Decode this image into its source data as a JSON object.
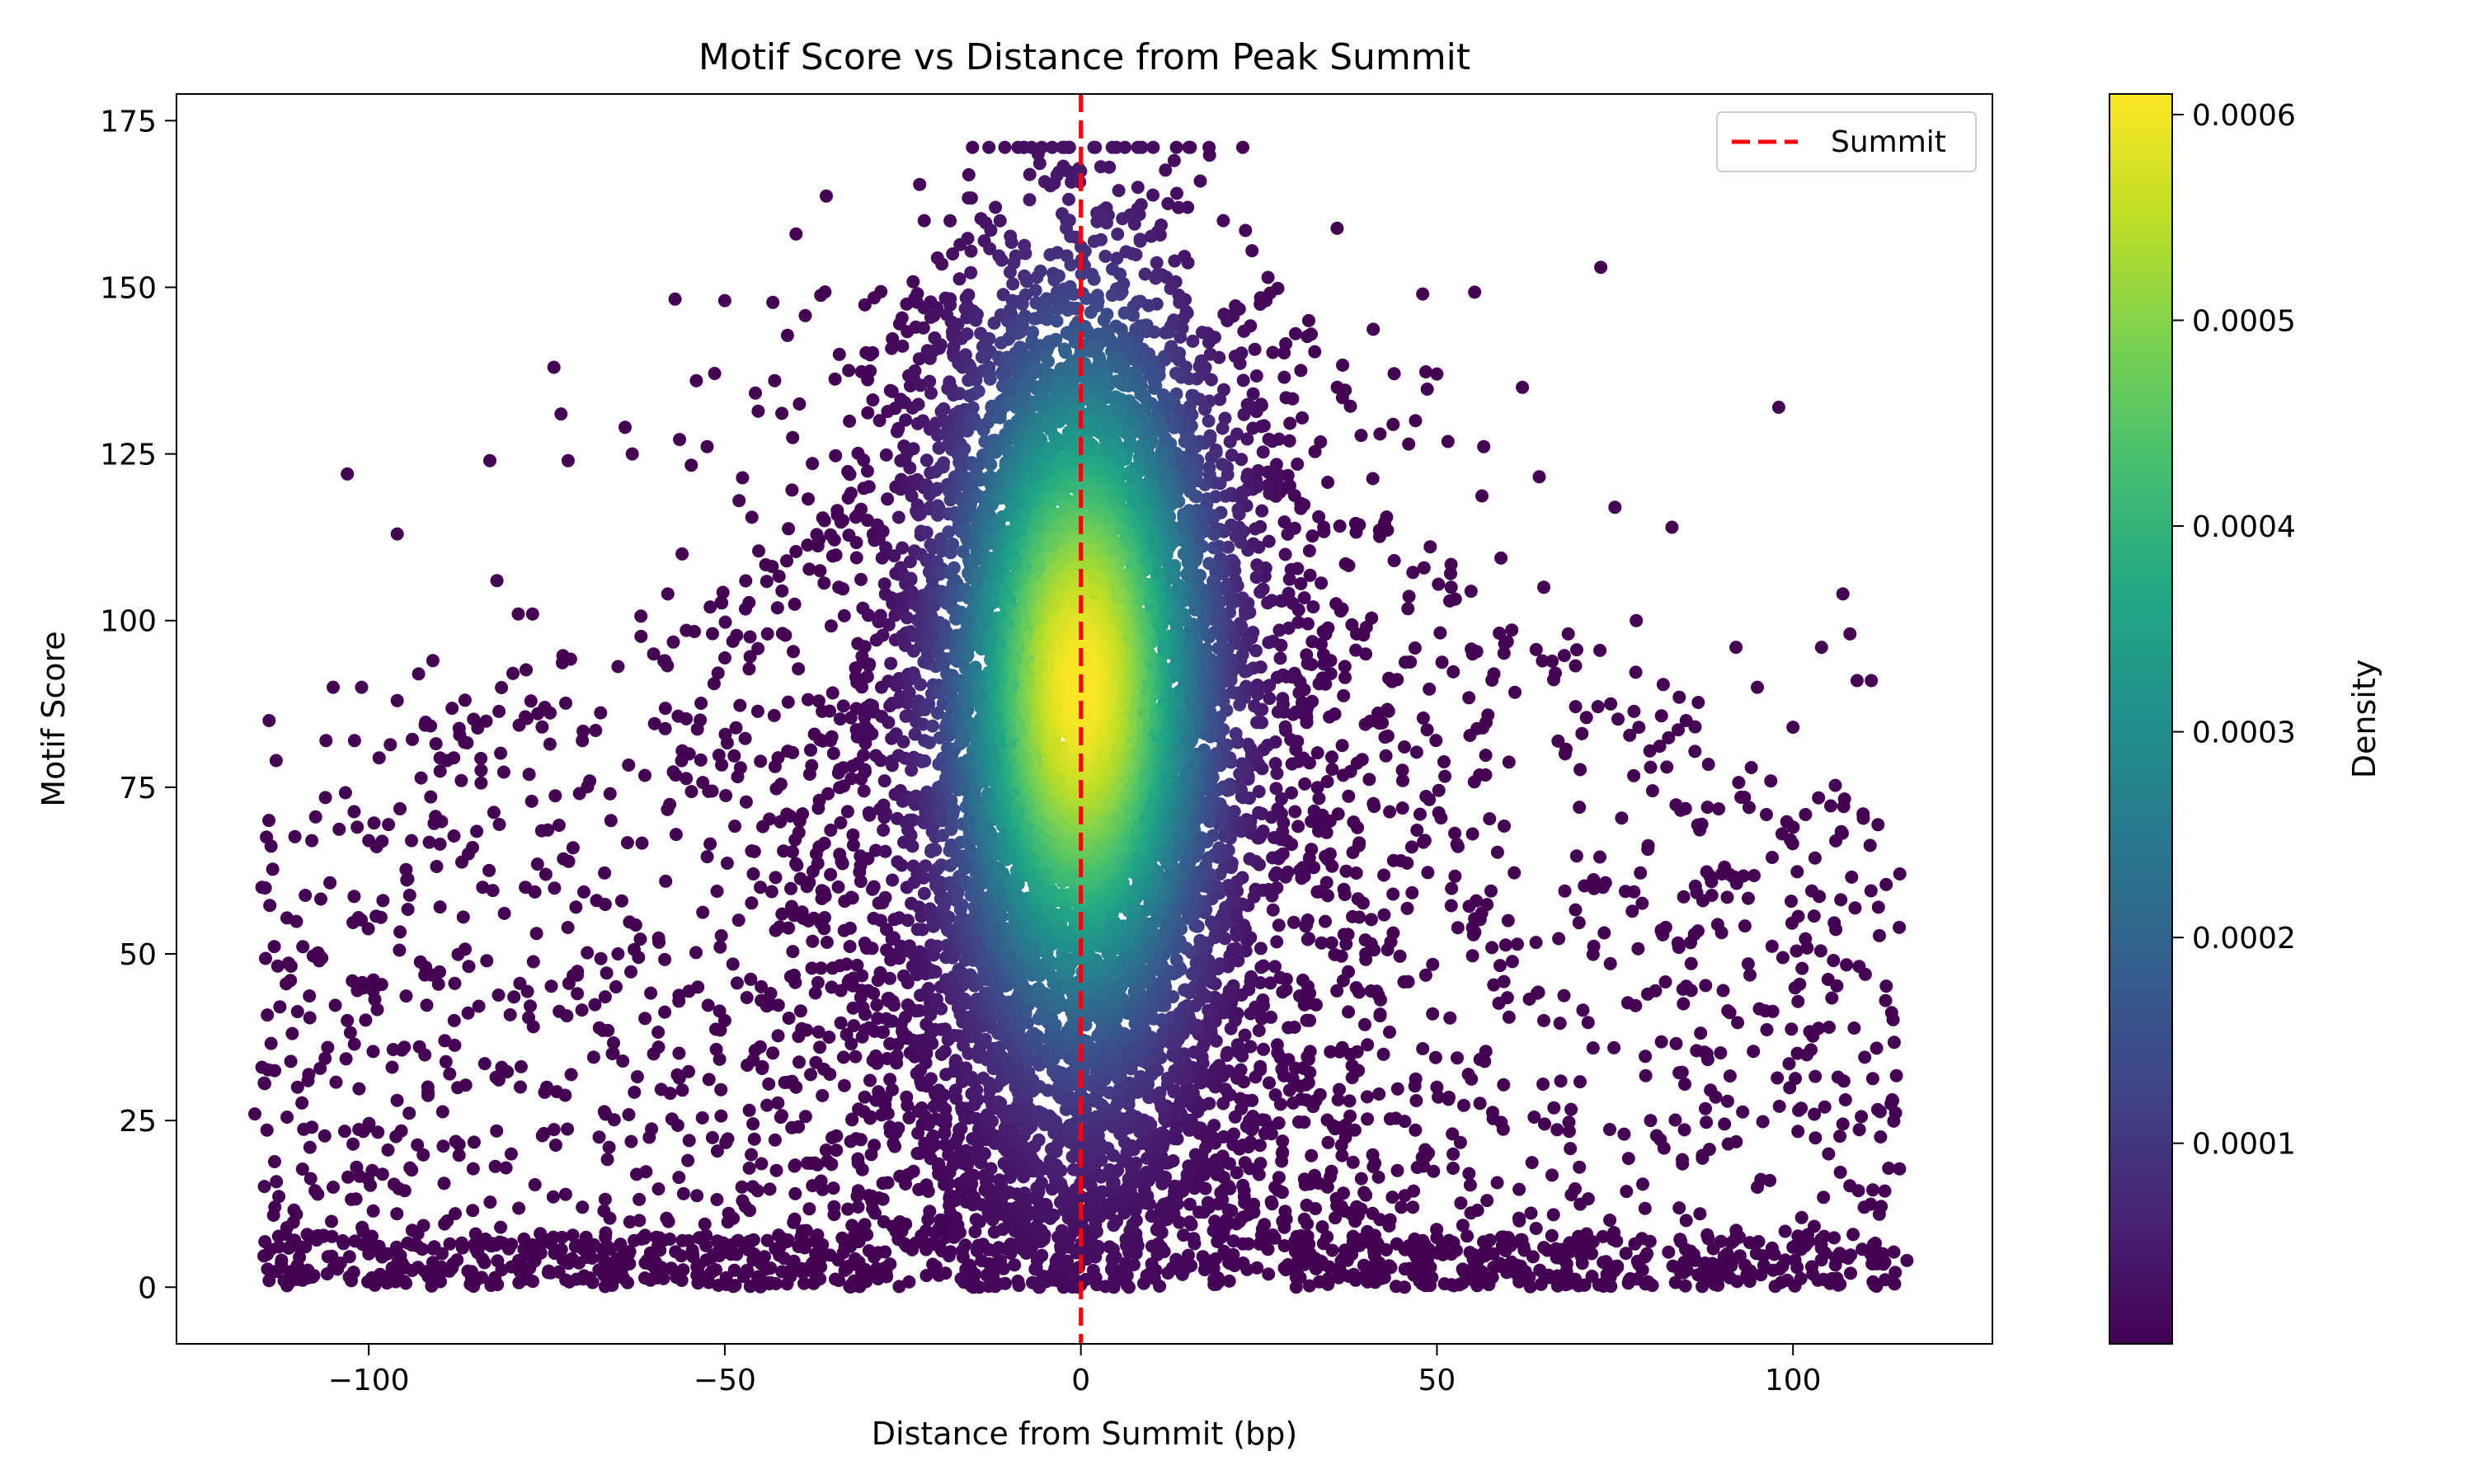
{
  "chart_data": {
    "type": "scatter",
    "title": "Motif Score vs Distance from Peak Summit",
    "xlabel": "Distance from Summit (bp)",
    "ylabel": "Motif Score",
    "xlim": [
      -127,
      128
    ],
    "ylim": [
      -8.5,
      179
    ],
    "x_ticks": [
      -100,
      -50,
      0,
      50,
      100
    ],
    "x_tick_labels": [
      "−100",
      "−50",
      "0",
      "50",
      "100"
    ],
    "y_ticks": [
      0,
      25,
      50,
      75,
      100,
      125,
      150,
      175
    ],
    "y_tick_labels": [
      "0",
      "25",
      "50",
      "75",
      "100",
      "125",
      "150",
      "175"
    ],
    "grid": false,
    "legend": {
      "placement": "upper-right",
      "entries": [
        {
          "label": "Summit",
          "style": "dashed-line",
          "color": "#ff0000"
        }
      ]
    },
    "reference_lines": [
      {
        "orientation": "vertical",
        "x": 0,
        "label": "Summit",
        "color": "#ff0000",
        "style": "dashed"
      }
    ],
    "colorbar": {
      "label": "Density",
      "colormap": "viridis",
      "range": [
        2.5e-06,
        0.00061
      ],
      "ticks": [
        0.0001,
        0.0002,
        0.0003,
        0.0004,
        0.0005,
        0.0006
      ],
      "tick_labels": [
        "0.0001",
        "0.0002",
        "0.0003",
        "0.0004",
        "0.0005",
        "0.0006"
      ]
    },
    "marker_color_by": "density",
    "distribution": {
      "x_range": [
        -115,
        115
      ],
      "y_range": [
        0,
        171
      ],
      "density_peak": {
        "x": 0,
        "y": 90
      },
      "notes": "dense core within roughly ±30 bp of the summit; sparse scattered points outward, many near score 0"
    },
    "points": [
      [
        -114,
        85
      ],
      [
        -113,
        79
      ],
      [
        -115,
        60
      ],
      [
        -115,
        33
      ],
      [
        -116,
        26
      ],
      [
        -114,
        1
      ],
      [
        -111,
        46
      ],
      [
        -110,
        30
      ],
      [
        -108,
        67
      ],
      [
        -106,
        82
      ],
      [
        -105,
        90
      ],
      [
        -103,
        40
      ],
      [
        -101,
        90
      ],
      [
        -102,
        82
      ],
      [
        -103,
        122
      ],
      [
        -100,
        67
      ],
      [
        -98,
        58
      ],
      [
        -96,
        113
      ],
      [
        -96,
        88
      ],
      [
        -94,
        67
      ],
      [
        -93,
        92
      ],
      [
        -91,
        94
      ],
      [
        -89,
        79
      ],
      [
        -87,
        76
      ],
      [
        -86,
        65
      ],
      [
        -84,
        60
      ],
      [
        -83,
        124
      ],
      [
        -82,
        106
      ],
      [
        -79,
        101
      ],
      [
        -77,
        101
      ],
      [
        -74,
        138
      ],
      [
        -73,
        131
      ],
      [
        -72,
        124
      ],
      [
        -70,
        82
      ],
      [
        -68,
        58
      ],
      [
        -64,
        129
      ],
      [
        -63,
        125
      ],
      [
        -60,
        95
      ],
      [
        -58,
        104
      ],
      [
        -56,
        110
      ],
      [
        -55,
        80
      ],
      [
        -50,
        148
      ],
      [
        -54,
        136
      ],
      [
        -48,
        118
      ],
      [
        -43,
        136
      ],
      [
        -40,
        158
      ],
      [
        -44,
        98
      ],
      [
        -46,
        62
      ],
      [
        -36,
        115
      ],
      [
        -34,
        105
      ],
      [
        -28,
        90
      ],
      [
        -22,
        160
      ],
      [
        -18,
        155
      ],
      [
        -12,
        162
      ],
      [
        -6,
        170
      ],
      [
        -2,
        160
      ],
      [
        4,
        168
      ],
      [
        8,
        165
      ],
      [
        15,
        162
      ],
      [
        20,
        160
      ],
      [
        26,
        148
      ],
      [
        32,
        145
      ],
      [
        36,
        135
      ],
      [
        42,
        128
      ],
      [
        48,
        149
      ],
      [
        50,
        137
      ],
      [
        47,
        130
      ],
      [
        44,
        109
      ],
      [
        40,
        95
      ],
      [
        52,
        105
      ],
      [
        55,
        95
      ],
      [
        58,
        92
      ],
      [
        62,
        135
      ],
      [
        65,
        105
      ],
      [
        68,
        80
      ],
      [
        70,
        72
      ],
      [
        73,
        153
      ],
      [
        75,
        117
      ],
      [
        78,
        100
      ],
      [
        80,
        78
      ],
      [
        83,
        114
      ],
      [
        85,
        85
      ],
      [
        88,
        72
      ],
      [
        90,
        62
      ],
      [
        92,
        96
      ],
      [
        95,
        90
      ],
      [
        98,
        132
      ],
      [
        100,
        84
      ],
      [
        104,
        96
      ],
      [
        107,
        104
      ],
      [
        108,
        98
      ],
      [
        109,
        91
      ],
      [
        111,
        91
      ],
      [
        112,
        57
      ],
      [
        113,
        43
      ],
      [
        115,
        62
      ],
      [
        114,
        28
      ],
      [
        116,
        4
      ],
      [
        110,
        12
      ],
      [
        105,
        20
      ],
      [
        100,
        6
      ],
      [
        95,
        15
      ],
      [
        90,
        2
      ],
      [
        85,
        10
      ],
      [
        80,
        25
      ],
      [
        75,
        3
      ],
      [
        70,
        18
      ],
      [
        65,
        40
      ],
      [
        60,
        55
      ],
      [
        55,
        68
      ],
      [
        50,
        30
      ],
      [
        45,
        12
      ],
      [
        40,
        50
      ],
      [
        35,
        65
      ],
      [
        -35,
        45
      ],
      [
        -40,
        30
      ],
      [
        -45,
        60
      ],
      [
        -50,
        40
      ],
      [
        -55,
        22
      ],
      [
        -60,
        35
      ],
      [
        -65,
        50
      ],
      [
        -70,
        12
      ],
      [
        -75,
        30
      ],
      [
        -80,
        20
      ],
      [
        -85,
        8
      ],
      [
        -90,
        2
      ],
      [
        -95,
        36
      ],
      [
        -100,
        5
      ],
      [
        -105,
        15
      ],
      [
        -110,
        3
      ],
      [
        -108,
        24
      ],
      [
        -92,
        48
      ],
      [
        -88,
        40
      ],
      [
        -78,
        60
      ],
      [
        -66,
        70
      ],
      [
        -62,
        10
      ]
    ]
  }
}
